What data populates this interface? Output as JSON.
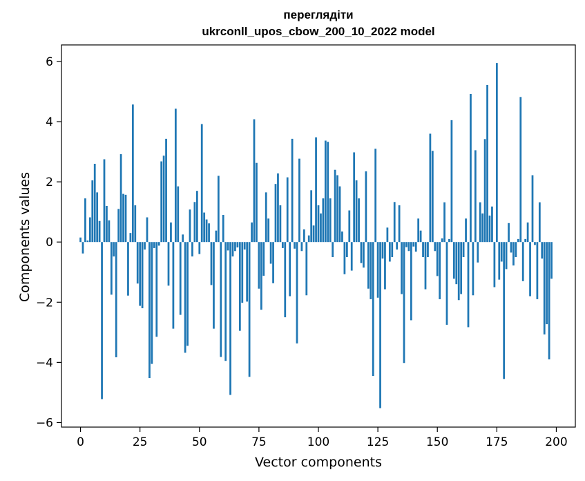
{
  "chart_data": {
    "type": "bar",
    "title_line1": "переглядіти",
    "title_line2": "ukrconll_upos_cbow_200_10_2022 model",
    "xlabel": "Vector components",
    "ylabel": "Components values",
    "xlim": [
      -8,
      208
    ],
    "ylim": [
      -6.15,
      6.55
    ],
    "xticks": [
      0,
      25,
      50,
      75,
      100,
      125,
      150,
      175,
      200
    ],
    "xtick_labels": [
      "0",
      "25",
      "50",
      "75",
      "100",
      "125",
      "150",
      "175",
      "200"
    ],
    "yticks": [
      -6,
      -4,
      -2,
      0,
      2,
      4,
      6
    ],
    "ytick_labels": [
      "−6",
      "−4",
      "−2",
      "0",
      "2",
      "4",
      "6"
    ],
    "bar_color": "#1f77b4",
    "values": [
      0.15,
      -0.38,
      1.45,
      0.05,
      0.82,
      2.05,
      2.6,
      1.65,
      0.7,
      -5.22,
      2.75,
      1.2,
      0.72,
      -1.75,
      -0.48,
      -3.83,
      1.1,
      2.92,
      1.6,
      1.57,
      -1.78,
      0.3,
      4.57,
      1.22,
      -1.38,
      -2.12,
      -2.2,
      -0.25,
      0.82,
      -4.52,
      -4.05,
      -0.2,
      -3.15,
      -0.12,
      2.68,
      2.87,
      3.43,
      -1.45,
      0.65,
      -2.88,
      4.43,
      1.85,
      -2.42,
      0.25,
      -3.68,
      -3.45,
      1.08,
      -0.48,
      1.33,
      1.7,
      -0.4,
      3.92,
      0.98,
      0.75,
      0.62,
      -1.43,
      -2.88,
      0.38,
      2.2,
      -3.82,
      0.9,
      -3.95,
      -0.28,
      -5.08,
      -0.48,
      -0.3,
      -0.18,
      -2.95,
      -2.02,
      -0.25,
      -1.98,
      -4.48,
      0.65,
      4.08,
      2.63,
      -1.55,
      -2.25,
      -1.12,
      1.65,
      0.78,
      -0.72,
      -1.37,
      1.93,
      2.28,
      1.22,
      -0.2,
      -2.5,
      2.15,
      -1.8,
      3.43,
      -0.22,
      -3.37,
      2.77,
      -0.3,
      0.42,
      -1.77,
      0.22,
      1.72,
      0.55,
      3.48,
      1.22,
      0.95,
      1.45,
      3.37,
      3.33,
      1.45,
      -0.5,
      2.4,
      2.22,
      1.85,
      0.35,
      -1.07,
      -0.5,
      1.05,
      -0.95,
      2.98,
      2.05,
      1.45,
      -0.7,
      -0.85,
      2.35,
      -1.55,
      -1.9,
      -4.45,
      3.1,
      -1.85,
      -5.52,
      -0.55,
      -1.57,
      0.48,
      -0.65,
      -0.5,
      1.33,
      -0.25,
      1.22,
      -1.73,
      -4.02,
      -0.17,
      -0.3,
      -2.6,
      -0.15,
      -0.32,
      0.78,
      0.38,
      -0.5,
      -1.57,
      -0.5,
      3.6,
      3.03,
      -0.3,
      -1.13,
      -1.9,
      0.12,
      1.32,
      -2.75,
      0.1,
      4.05,
      -1.22,
      -1.4,
      -1.93,
      -1.73,
      -0.5,
      0.78,
      -2.83,
      4.92,
      -1.77,
      3.05,
      -0.68,
      1.32,
      0.95,
      3.42,
      5.22,
      0.88,
      1.18,
      -1.5,
      5.95,
      -1.25,
      -0.65,
      -4.55,
      -0.9,
      0.63,
      -0.35,
      -0.78,
      -0.5,
      0.1,
      4.82,
      -1.3,
      0.1,
      0.65,
      -1.8,
      2.22,
      -0.1,
      -1.9,
      1.32,
      -0.55,
      -3.07,
      -2.73,
      -3.9,
      -1.22
    ]
  }
}
